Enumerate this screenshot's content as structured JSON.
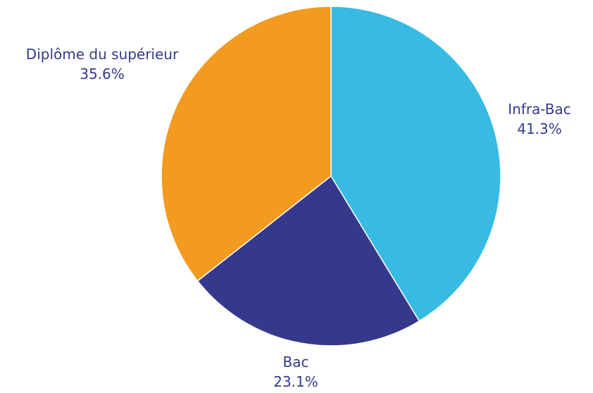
{
  "chart_data": {
    "type": "pie",
    "title": "",
    "start_angle_deg": 0,
    "direction": "clockwise",
    "slices": [
      {
        "label": "Infra-Bac",
        "value": 41.3,
        "value_label": "41.3%",
        "color": "#37bbe2"
      },
      {
        "label": "Bac",
        "value": 23.1,
        "value_label": "23.1%",
        "color": "#35398c"
      },
      {
        "label": "Diplôme du supérieur",
        "value": 35.6,
        "value_label": "35.6%",
        "color": "#f29b1e"
      }
    ]
  }
}
